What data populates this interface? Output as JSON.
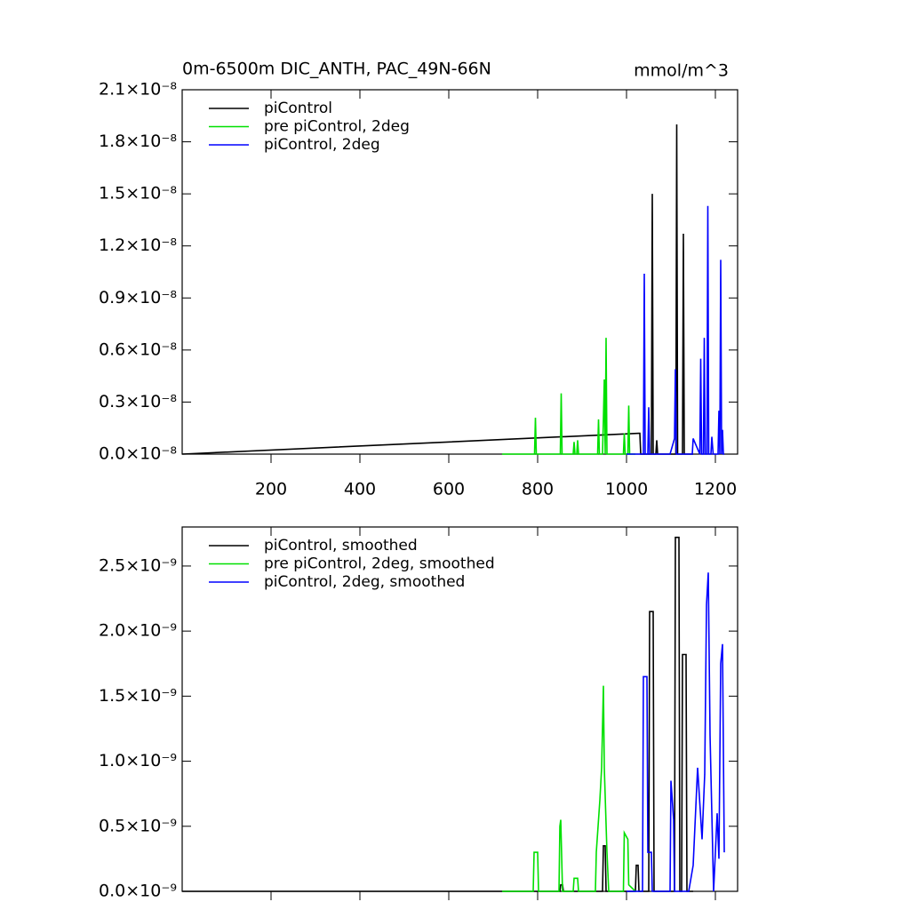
{
  "chart_data": [
    {
      "type": "line",
      "title": "0m-6500m DIC_ANTH, PAC_49N-66N",
      "units": "mmol/m^3",
      "xlim": [
        0,
        1250
      ],
      "xticks": [
        200,
        400,
        600,
        800,
        1000,
        1200
      ],
      "xtick_labels": true,
      "ylim": [
        0,
        2.1e-08
      ],
      "yticks": [
        {
          "value": 0,
          "label": "0.0×10⁻⁸"
        },
        {
          "value": 3e-09,
          "label": "0.3×10⁻⁸"
        },
        {
          "value": 6e-09,
          "label": "0.6×10⁻⁸"
        },
        {
          "value": 9e-09,
          "label": "0.9×10⁻⁸"
        },
        {
          "value": 1.2e-08,
          "label": "1.2×10⁻⁸"
        },
        {
          "value": 1.5e-08,
          "label": "1.5×10⁻⁸"
        },
        {
          "value": 1.8e-08,
          "label": "1.8×10⁻⁸"
        },
        {
          "value": 2.1e-08,
          "label": "2.1×10⁻⁸"
        }
      ],
      "legend": "upper left",
      "series": [
        {
          "name": "piControl",
          "color": "#000000",
          "x": [
            0,
            1028,
            1030,
            1032,
            1056,
            1058,
            1060,
            1066,
            1068,
            1070,
            1111,
            1113,
            1115,
            1126,
            1128,
            1130,
            1150
          ],
          "values": [
            0,
            1.2e-09,
            1.2e-09,
            0,
            0,
            1.5e-08,
            0,
            0,
            8e-10,
            0,
            0,
            1.9e-08,
            0,
            0,
            1.27e-08,
            0,
            0
          ]
        },
        {
          "name": "pre piControl, 2deg",
          "color": "#00e000",
          "x": [
            720,
            793,
            795,
            797,
            851,
            853,
            855,
            880,
            882,
            884,
            888,
            890,
            892,
            935,
            937,
            939,
            946,
            948,
            950,
            952,
            954,
            956,
            993,
            995,
            997,
            1003,
            1005,
            1007,
            1020
          ],
          "values": [
            0,
            0,
            2.1e-09,
            0,
            0,
            3.5e-09,
            0,
            0,
            7e-10,
            0,
            0,
            8e-10,
            0,
            0,
            2e-09,
            0,
            0,
            2e-09,
            4.3e-09,
            0,
            6.7e-09,
            0,
            0,
            1.2e-09,
            0,
            0,
            2.8e-09,
            0,
            0
          ]
        },
        {
          "name": "piControl, 2deg",
          "color": "#0000ff",
          "x": [
            1000,
            1038,
            1040,
            1042,
            1048,
            1050,
            1052,
            1098,
            1108,
            1110,
            1112,
            1148,
            1150,
            1165,
            1167,
            1169,
            1173,
            1175,
            1177,
            1181,
            1183,
            1185,
            1190,
            1192,
            1195,
            1206,
            1208,
            1210,
            1212,
            1214,
            1216,
            1218,
            1220
          ],
          "values": [
            0,
            0,
            1.04e-08,
            0,
            0,
            2.7e-09,
            0,
            0,
            9e-10,
            4.9e-09,
            0,
            0,
            9e-10,
            0,
            5.5e-09,
            0,
            0,
            6.7e-09,
            0,
            0,
            1.43e-08,
            0,
            0,
            1e-09,
            0,
            0,
            2.5e-09,
            0,
            1.12e-08,
            0,
            1.4e-09,
            0,
            0
          ]
        }
      ]
    },
    {
      "type": "line",
      "xlim": [
        0,
        1250
      ],
      "xticks": [
        200,
        400,
        600,
        800,
        1000,
        1200
      ],
      "xtick_labels": false,
      "ylim": [
        0,
        2.8e-09
      ],
      "yticks": [
        {
          "value": 0,
          "label": "0.0×10⁻⁹"
        },
        {
          "value": 5e-10,
          "label": "0.5×10⁻⁹"
        },
        {
          "value": 1e-09,
          "label": "1.0×10⁻⁹"
        },
        {
          "value": 1.5e-09,
          "label": "1.5×10⁻⁹"
        },
        {
          "value": 2e-09,
          "label": "2.0×10⁻⁹"
        },
        {
          "value": 2.5e-09,
          "label": "2.5×10⁻⁹"
        }
      ],
      "legend": "upper left",
      "series": [
        {
          "name": "piControl, smoothed",
          "color": "#000000",
          "x": [
            0,
            850,
            852,
            856,
            858,
            946,
            948,
            952,
            954,
            1020,
            1022,
            1026,
            1028,
            1050,
            1052,
            1060,
            1062,
            1108,
            1110,
            1118,
            1120,
            1124,
            1126,
            1134,
            1136,
            1150
          ],
          "values": [
            0,
            0,
            5e-11,
            5e-11,
            0,
            0,
            3.5e-10,
            3.5e-10,
            0,
            0,
            2e-10,
            2e-10,
            0,
            0,
            2.15e-09,
            2.15e-09,
            0,
            0,
            2.72e-09,
            2.72e-09,
            0,
            0,
            1.82e-09,
            1.82e-09,
            0,
            0
          ]
        },
        {
          "name": "pre piControl, 2deg, smoothed",
          "color": "#00e000",
          "x": [
            720,
            790,
            792,
            800,
            802,
            848,
            850,
            852,
            856,
            880,
            882,
            890,
            892,
            930,
            932,
            940,
            944,
            948,
            950,
            956,
            960,
            993,
            995,
            1003,
            1005,
            1020
          ],
          "values": [
            0,
            0,
            3e-10,
            3e-10,
            0,
            0,
            5e-10,
            5.5e-10,
            0,
            0,
            1e-10,
            1e-10,
            0,
            0,
            3e-10,
            7e-10,
            9.5e-10,
            1.58e-09,
            9.5e-10,
            3e-10,
            0,
            0,
            4.5e-10,
            4e-10,
            5e-11,
            0
          ]
        },
        {
          "name": "piControl, 2deg, smoothed",
          "color": "#0000ff",
          "x": [
            1000,
            1036,
            1038,
            1046,
            1048,
            1056,
            1058,
            1098,
            1100,
            1106,
            1108,
            1140,
            1150,
            1160,
            1170,
            1176,
            1180,
            1184,
            1188,
            1196,
            1204,
            1208,
            1212,
            1216,
            1220
          ],
          "values": [
            0,
            0,
            1.65e-09,
            1.65e-09,
            3e-10,
            3e-10,
            0,
            0,
            8.5e-10,
            5.5e-10,
            0,
            0,
            2e-10,
            9.5e-10,
            4e-10,
            9e-10,
            2.2e-09,
            2.45e-09,
            1.2e-09,
            0,
            6e-10,
            2.5e-10,
            1.75e-09,
            1.9e-09,
            3e-10
          ]
        }
      ]
    }
  ]
}
